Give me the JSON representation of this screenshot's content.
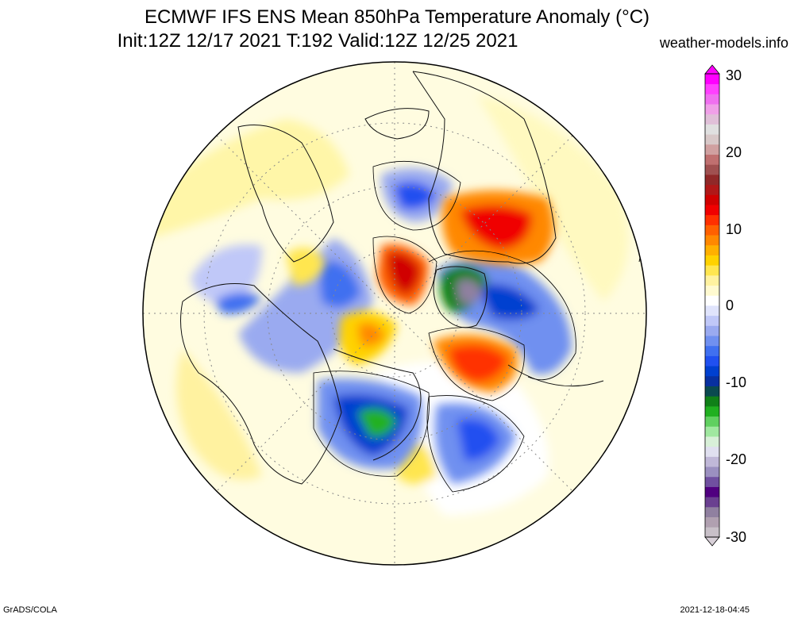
{
  "header": {
    "title": "ECMWF IFS ENS Mean 850hPa Temperature Anomaly (°C)",
    "subtitle": "Init:12Z 12/17 2021  T:192 Valid:12Z 12/25 2021",
    "site": "weather-models.info"
  },
  "colorbar": {
    "labels": [
      "30",
      "20",
      "10",
      "0",
      "-10",
      "-20",
      "-30"
    ],
    "range": [
      -30,
      30
    ],
    "colors": [
      "#c8c0c8",
      "#b0a0b0",
      "#9080a0",
      "#6a4090",
      "#500080",
      "#7050a0",
      "#9b90c0",
      "#c0b8d8",
      "#e0e0f0",
      "#d8f0d8",
      "#a0e8a0",
      "#60d060",
      "#20b020",
      "#108018",
      "#0a4a50",
      "#0830a0",
      "#0040d0",
      "#2050f0",
      "#4070f0",
      "#7090f0",
      "#9aaaf0",
      "#c0c8f8",
      "#e0e4fc",
      "#ffffff",
      "#fffad0",
      "#fff2a0",
      "#ffe650",
      "#ffd200",
      "#ffb000",
      "#ff8800",
      "#ff6000",
      "#ff3000",
      "#f00000",
      "#d00000",
      "#b01818",
      "#902828",
      "#a05050",
      "#c07070",
      "#d0a0a0",
      "#d8c8c8",
      "#e0e0e0",
      "#e0c0d8",
      "#f0a0e8",
      "#f070f0",
      "#ff40ff",
      "#ff00ff"
    ]
  },
  "footer": {
    "software": "GrADS/COLA",
    "timestamp": "2021-12-18-04:45"
  }
}
